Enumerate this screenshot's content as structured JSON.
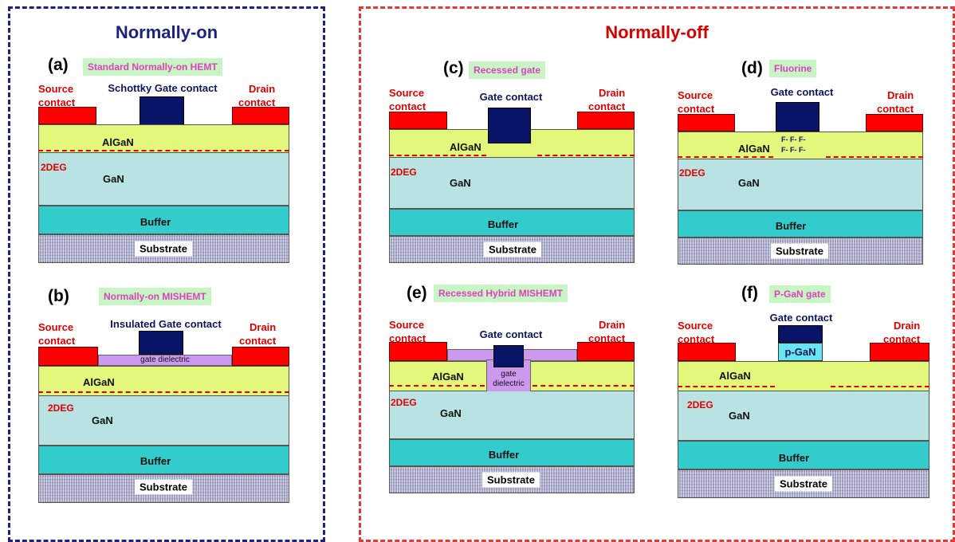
{
  "sections": {
    "normally_on": "Normally-on",
    "normally_off": "Normally-off"
  },
  "layers": {
    "algan": "AlGaN",
    "twodeg": "2DEG",
    "gan": "GaN",
    "buffer": "Buffer",
    "substrate": "Substrate"
  },
  "contacts": {
    "source": "Source\ncontact",
    "drain": "Drain\ncontact"
  },
  "colors": {
    "on_frame": "#1a237e",
    "off_frame": "#e53935",
    "contact": "#ff0000",
    "gate": "#0a1466",
    "algan": "#e3f77a",
    "gan": "#b9e3e3",
    "buffer": "#33cccc",
    "dielectric": "#cc99ee",
    "pgan": "#66e6f0"
  },
  "panels": {
    "a": {
      "label": "(a)",
      "title": "Standard Normally-on HEMT",
      "gate": "Schottky Gate contact"
    },
    "b": {
      "label": "(b)",
      "title": "Normally-on MISHEMT",
      "gate": "Insulated Gate contact",
      "dielectric": "gate dielectric"
    },
    "c": {
      "label": "(c)",
      "title": "Recessed gate",
      "gate": "Gate contact"
    },
    "d": {
      "label": "(d)",
      "title": "Fluorine",
      "gate": "Gate contact",
      "fluorine_row": "F- F- F-"
    },
    "e": {
      "label": "(e)",
      "title": "Recessed Hybrid MISHEMT",
      "gate": "Gate contact",
      "dielectric": "gate\ndielectric"
    },
    "f": {
      "label": "(f)",
      "title": "P-GaN gate",
      "gate": "Gate contact",
      "pgan": "p-GaN"
    }
  }
}
